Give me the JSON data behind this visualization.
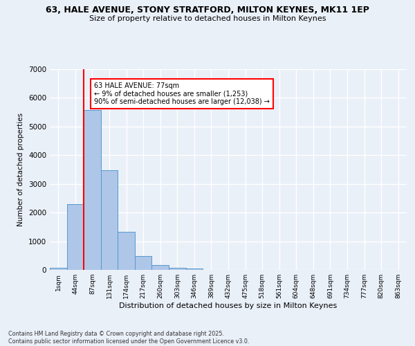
{
  "title_line1": "63, HALE AVENUE, STONY STRATFORD, MILTON KEYNES, MK11 1EP",
  "title_line2": "Size of property relative to detached houses in Milton Keynes",
  "xlabel": "Distribution of detached houses by size in Milton Keynes",
  "ylabel": "Number of detached properties",
  "categories": [
    "1sqm",
    "44sqm",
    "87sqm",
    "131sqm",
    "174sqm",
    "217sqm",
    "260sqm",
    "303sqm",
    "346sqm",
    "389sqm",
    "432sqm",
    "475sqm",
    "518sqm",
    "561sqm",
    "604sqm",
    "648sqm",
    "691sqm",
    "734sqm",
    "777sqm",
    "820sqm",
    "863sqm"
  ],
  "values": [
    80,
    2290,
    5570,
    3470,
    1330,
    490,
    160,
    80,
    40,
    0,
    0,
    0,
    0,
    0,
    0,
    0,
    0,
    0,
    0,
    0,
    0
  ],
  "bar_color": "#aec6e8",
  "bar_edge_color": "#5599cc",
  "red_line_index": 2,
  "annotation_title": "63 HALE AVENUE: 77sqm",
  "annotation_line1": "← 9% of detached houses are smaller (1,253)",
  "annotation_line2": "90% of semi-detached houses are larger (12,038) →",
  "ylim": [
    0,
    7000
  ],
  "yticks": [
    0,
    1000,
    2000,
    3000,
    4000,
    5000,
    6000,
    7000
  ],
  "bg_color": "#eaf0f8",
  "grid_color": "#ffffff",
  "footer_line1": "Contains HM Land Registry data © Crown copyright and database right 2025.",
  "footer_line2": "Contains public sector information licensed under the Open Government Licence v3.0."
}
